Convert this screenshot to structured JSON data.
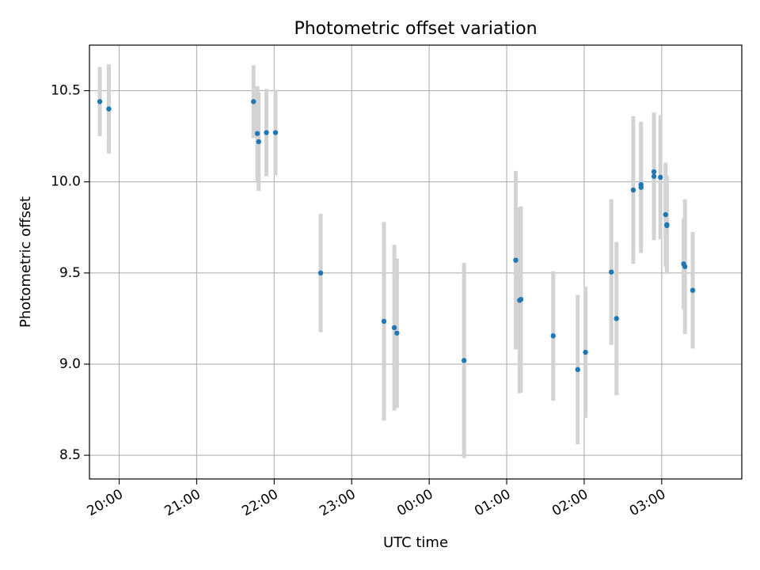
{
  "chart_data": {
    "type": "scatter",
    "title": "Photometric offset variation",
    "xlabel": "UTC time",
    "ylabel": "Photometric offset",
    "x_is_time": true,
    "x_ticks": [
      "20:00",
      "21:00",
      "22:00",
      "23:00",
      "00:00",
      "01:00",
      "02:00",
      "03:00"
    ],
    "xlim": [
      "19:37",
      "04:02"
    ],
    "ylim": [
      8.37,
      10.75
    ],
    "y_ticks": [
      8.5,
      9.0,
      9.5,
      10.0,
      10.5
    ],
    "y_tick_labels": [
      "8.5",
      "9.0",
      "9.5",
      "10.0",
      "10.5"
    ],
    "grid": true,
    "marker_color": "#1f77b4",
    "errorbar_color": "#d3d3d3",
    "series": [
      {
        "points": [
          {
            "x": "19:45",
            "y": 10.44,
            "err": 0.19
          },
          {
            "x": "19:52",
            "y": 10.4,
            "err": 0.245
          },
          {
            "x": "21:44",
            "y": 10.44,
            "err": 0.2
          },
          {
            "x": "21:47",
            "y": 10.265,
            "err": 0.26
          },
          {
            "x": "21:48",
            "y": 10.22,
            "err": 0.27
          },
          {
            "x": "21:54",
            "y": 10.27,
            "err": 0.24
          },
          {
            "x": "22:01",
            "y": 10.27,
            "err": 0.235
          },
          {
            "x": "22:36",
            "y": 9.5,
            "err": 0.325
          },
          {
            "x": "23:25",
            "y": 9.235,
            "err": 0.545
          },
          {
            "x": "23:33",
            "y": 9.2,
            "err": 0.455
          },
          {
            "x": "23:35",
            "y": 9.17,
            "err": 0.41
          },
          {
            "x": "00:27",
            "y": 9.02,
            "err": 0.535
          },
          {
            "x": "01:07",
            "y": 9.57,
            "err": 0.49
          },
          {
            "x": "01:10",
            "y": 9.35,
            "err": 0.51
          },
          {
            "x": "01:11",
            "y": 9.355,
            "err": 0.51
          },
          {
            "x": "01:36",
            "y": 9.155,
            "err": 0.355
          },
          {
            "x": "01:55",
            "y": 8.97,
            "err": 0.41
          },
          {
            "x": "02:01",
            "y": 9.065,
            "err": 0.36
          },
          {
            "x": "02:21",
            "y": 9.505,
            "err": 0.4
          },
          {
            "x": "02:25",
            "y": 9.25,
            "err": 0.42
          },
          {
            "x": "02:38",
            "y": 9.955,
            "err": 0.405
          },
          {
            "x": "02:44",
            "y": 9.985,
            "err": 0.34
          },
          {
            "x": "02:44",
            "y": 9.97,
            "err": 0.36
          },
          {
            "x": "02:54",
            "y": 10.055,
            "err": 0.325
          },
          {
            "x": "02:54",
            "y": 10.03,
            "err": 0.35
          },
          {
            "x": "02:59",
            "y": 10.025,
            "err": 0.34
          },
          {
            "x": "03:03",
            "y": 9.82,
            "err": 0.285
          },
          {
            "x": "03:04",
            "y": 9.765,
            "err": 0.27
          },
          {
            "x": "03:04",
            "y": 9.76,
            "err": 0.25
          },
          {
            "x": "03:17",
            "y": 9.55,
            "err": 0.25
          },
          {
            "x": "03:18",
            "y": 9.535,
            "err": 0.37
          },
          {
            "x": "03:24",
            "y": 9.405,
            "err": 0.32
          }
        ]
      }
    ]
  }
}
